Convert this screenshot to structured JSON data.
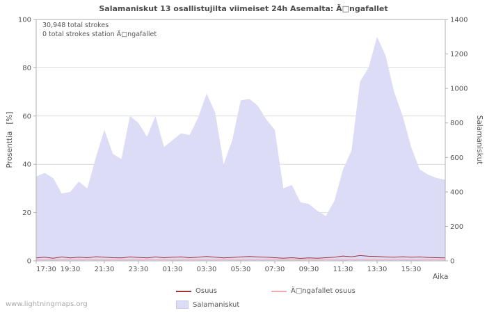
{
  "page": {
    "watermark": "www.lightningmaps.org"
  },
  "chart_data": {
    "type": "area",
    "title": "Salamaniskut 13 osallistujilta viimeiset 24h Asemalta: Ä□ngafallet",
    "annotations": [
      "30,948 total strokes",
      "0 total strokes station Ä□ngafallet"
    ],
    "x_axis": {
      "label": "Aika",
      "tick_labels": [
        "17:30",
        "19:30",
        "21:30",
        "23:30",
        "01:30",
        "03:30",
        "05:30",
        "07:30",
        "09:30",
        "11:30",
        "13:30",
        "15:30"
      ]
    },
    "y_axis_left": {
      "label": "Prosenttia   [%]",
      "ticks": [
        0,
        20,
        40,
        60,
        80,
        100
      ],
      "range": [
        0,
        100
      ]
    },
    "y_axis_right": {
      "label": "Salamaniskut",
      "ticks": [
        0,
        200,
        400,
        600,
        800,
        1000,
        1200,
        1400
      ],
      "range": [
        0,
        1400
      ]
    },
    "colors": {
      "area": "#dddcf7",
      "osuus": "#a03232",
      "station": "#f2a9b4",
      "grid": "#dcdcdc",
      "frame": "#b0b0b0",
      "text": "#555555"
    },
    "series": [
      {
        "name": "Salamaniskut",
        "type": "area",
        "axis": "right",
        "color_key": "area",
        "values": [
          490,
          510,
          480,
          390,
          400,
          460,
          420,
          600,
          760,
          620,
          590,
          840,
          800,
          720,
          840,
          660,
          700,
          740,
          730,
          830,
          970,
          860,
          560,
          700,
          930,
          940,
          900,
          820,
          760,
          420,
          440,
          340,
          330,
          290,
          260,
          350,
          530,
          640,
          1040,
          1120,
          1300,
          1190,
          980,
          840,
          660,
          530,
          500,
          480,
          470
        ]
      },
      {
        "name": "Osuus",
        "type": "line",
        "axis": "left",
        "color_key": "osuus",
        "values": [
          1.2,
          1.5,
          1.1,
          1.6,
          1.2,
          1.5,
          1.3,
          1.7,
          1.5,
          1.3,
          1.2,
          1.6,
          1.4,
          1.2,
          1.6,
          1.3,
          1.5,
          1.6,
          1.3,
          1.5,
          1.8,
          1.5,
          1.2,
          1.4,
          1.6,
          1.8,
          1.6,
          1.5,
          1.3,
          1.1,
          1.3,
          1.0,
          1.2,
          1.1,
          1.3,
          1.5,
          2.0,
          1.7,
          2.2,
          1.9,
          1.8,
          1.6,
          1.5,
          1.7,
          1.5,
          1.6,
          1.4,
          1.3,
          1.2
        ]
      },
      {
        "name": "Ä□ngafallet osuus",
        "type": "line",
        "axis": "left",
        "color_key": "station",
        "values": [
          0.5,
          0.5,
          0.5,
          0.5,
          0.5,
          0.5,
          0.5,
          0.5,
          0.5,
          0.5,
          0.5,
          0.5,
          0.5,
          0.5,
          0.5,
          0.5,
          0.5,
          0.5,
          0.5,
          0.5,
          0.5,
          0.5,
          0.5,
          0.5,
          0.5,
          0.5,
          0.5,
          0.5,
          0.5,
          0.5,
          0.5,
          0.5,
          0.5,
          0.5,
          0.5,
          0.5,
          0.5,
          0.5,
          0.5,
          0.5,
          0.5,
          0.5,
          0.5,
          0.5,
          0.5,
          0.5,
          0.5,
          0.5,
          0.5
        ]
      }
    ],
    "legend": [
      {
        "label": "Osuus",
        "swatch": "line",
        "color_key": "osuus"
      },
      {
        "label": "Ä□ngafallet osuus",
        "swatch": "line",
        "color_key": "station"
      },
      {
        "label": "Salamaniskut",
        "swatch": "area",
        "color_key": "area"
      }
    ]
  }
}
